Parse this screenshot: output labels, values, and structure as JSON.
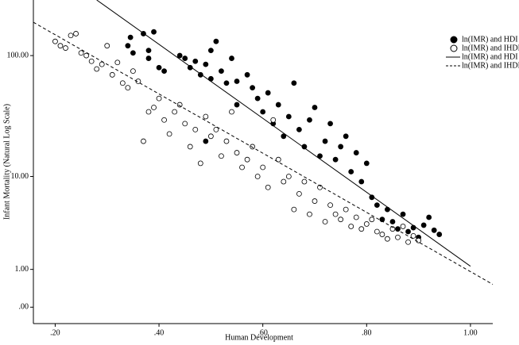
{
  "chart_data": {
    "type": "scatter",
    "xlabel": "Human Development",
    "ylabel": "Infant Mortality (Natural Log Scale)",
    "xlim": [
      0.158,
      1.043
    ],
    "ylim": [
      -0.26,
      279
    ],
    "yscale": "log1p",
    "xticks": [
      {
        "value": 0.2,
        "label": ".20"
      },
      {
        "value": 0.4,
        "label": ".40"
      },
      {
        "value": 0.6,
        "label": ".60"
      },
      {
        "value": 0.8,
        "label": ".80"
      },
      {
        "value": 1.0,
        "label": "1.00"
      }
    ],
    "yticks": [
      {
        "value": 0,
        "label": ".00"
      },
      {
        "value": 1,
        "label": "1.00"
      },
      {
        "value": 10,
        "label": "10.00"
      },
      {
        "value": 100,
        "label": "100.00"
      }
    ],
    "legend": "upper right",
    "series": [
      {
        "name": "ln(IMR) and HDI",
        "style": "filled",
        "color": "#000000",
        "x": [
          0.34,
          0.345,
          0.35,
          0.37,
          0.38,
          0.38,
          0.39,
          0.4,
          0.41,
          0.44,
          0.45,
          0.46,
          0.47,
          0.48,
          0.49,
          0.49,
          0.5,
          0.5,
          0.51,
          0.52,
          0.53,
          0.54,
          0.55,
          0.55,
          0.57,
          0.58,
          0.59,
          0.6,
          0.61,
          0.62,
          0.63,
          0.64,
          0.65,
          0.66,
          0.67,
          0.68,
          0.69,
          0.7,
          0.71,
          0.72,
          0.73,
          0.74,
          0.75,
          0.76,
          0.77,
          0.78,
          0.79,
          0.8,
          0.81,
          0.82,
          0.83,
          0.84,
          0.85,
          0.86,
          0.87,
          0.88,
          0.89,
          0.9,
          0.91,
          0.92,
          0.93,
          0.94
        ],
        "values": [
          120,
          140,
          105,
          150,
          110,
          95,
          155,
          80,
          75,
          100,
          95,
          80,
          90,
          70,
          85,
          20,
          65,
          110,
          130,
          75,
          60,
          95,
          40,
          62,
          70,
          55,
          45,
          35,
          50,
          28,
          40,
          22,
          32,
          60,
          25,
          18,
          30,
          38,
          15,
          20,
          28,
          14,
          18,
          22,
          11,
          16,
          9,
          13,
          6.5,
          5.5,
          4,
          5,
          3.8,
          3.2,
          4.5,
          3,
          3.3,
          2.6,
          3.5,
          4.2,
          3.1,
          2.8
        ]
      },
      {
        "name": "ln(IMR) and IHDI",
        "style": "open",
        "color": "#000000",
        "x": [
          0.2,
          0.21,
          0.22,
          0.23,
          0.24,
          0.25,
          0.26,
          0.27,
          0.28,
          0.29,
          0.3,
          0.31,
          0.32,
          0.33,
          0.34,
          0.35,
          0.36,
          0.37,
          0.38,
          0.39,
          0.4,
          0.41,
          0.42,
          0.43,
          0.44,
          0.45,
          0.46,
          0.47,
          0.48,
          0.49,
          0.5,
          0.51,
          0.52,
          0.53,
          0.54,
          0.55,
          0.56,
          0.57,
          0.58,
          0.59,
          0.6,
          0.61,
          0.62,
          0.63,
          0.64,
          0.65,
          0.66,
          0.67,
          0.68,
          0.69,
          0.7,
          0.71,
          0.72,
          0.73,
          0.74,
          0.75,
          0.76,
          0.77,
          0.78,
          0.79,
          0.8,
          0.81,
          0.82,
          0.83,
          0.84,
          0.85,
          0.86,
          0.87,
          0.88,
          0.89,
          0.9
        ],
        "values": [
          130,
          120,
          115,
          145,
          150,
          105,
          100,
          90,
          78,
          85,
          120,
          70,
          88,
          60,
          55,
          75,
          62,
          20,
          35,
          38,
          45,
          30,
          23,
          35,
          40,
          28,
          18,
          25,
          13,
          32,
          22,
          25,
          15,
          20,
          35,
          16,
          12,
          14,
          18,
          10,
          12,
          8,
          30,
          14,
          9,
          10,
          5,
          7,
          9,
          4.5,
          6,
          8,
          3.8,
          5.5,
          4.5,
          4,
          5,
          3.4,
          4.2,
          3.2,
          3.6,
          4,
          3,
          2.8,
          2.5,
          3.2,
          2.6,
          3.4,
          2.3,
          2.7,
          2.4
        ]
      },
      {
        "name": "ln(IMR) and HDI",
        "style": "solid",
        "color": "#000000",
        "x": [
          0.28,
          1.0
        ],
        "values": [
          279,
          1.12
        ]
      },
      {
        "name": "ln(IMR) and IHDI",
        "style": "dashed",
        "color": "#000000",
        "x": [
          0.158,
          1.043
        ],
        "values": [
          185,
          0.52
        ]
      }
    ]
  }
}
